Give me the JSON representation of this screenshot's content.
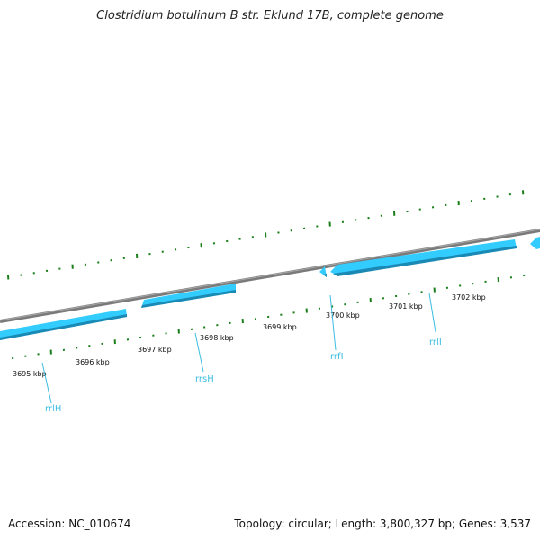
{
  "title": "Clostridium botulinum B str. Eklund 17B, complete genome",
  "footer": {
    "accession": "Accession: NC_010674",
    "stats": "Topology: circular; Length: 3,800,327 bp; Genes: 3,537"
  },
  "colors": {
    "backbone": "#808080",
    "gene_fill": "#33ccff",
    "gene_edge": "#1a8ab5",
    "tick": "#1a7f1a",
    "label": "#3bbde0"
  },
  "ticks": [
    "3695 kbp",
    "3696 kbp",
    "3697 kbp",
    "3698 kbp",
    "3699 kbp",
    "3700 kbp",
    "3701 kbp",
    "3702 kbp"
  ],
  "genes": [
    {
      "name": "rrlH",
      "strand": "+"
    },
    {
      "name": "rrsH",
      "strand": "+"
    },
    {
      "name": "rrfI",
      "strand": "-"
    },
    {
      "name": "rrlI",
      "strand": "-"
    }
  ]
}
